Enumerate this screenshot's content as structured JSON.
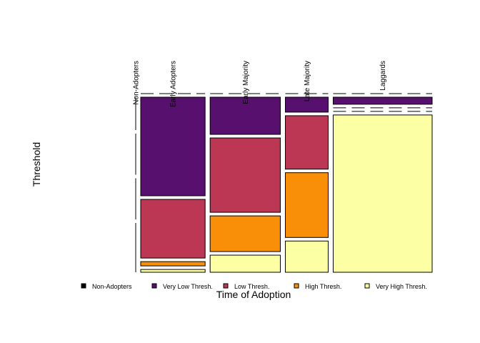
{
  "chart_data": {
    "type": "mosaic",
    "x_label": "Time of Adoption",
    "y_label": "Threshold",
    "categories": [
      "Non-Adopters",
      "Early Adopters",
      "Early Majority",
      "Late Majority",
      "Laggards"
    ],
    "widths": [
      0,
      23.3,
      25.4,
      15.5,
      35.8
    ],
    "series": [
      {
        "name": "Non-Adopters",
        "color": "#000000",
        "values": [
          0,
          0,
          0,
          0,
          0
        ]
      },
      {
        "name": "Very Low Thresh.",
        "color": "#57106e",
        "values": [
          20,
          60,
          22.6,
          9.1,
          4.3
        ]
      },
      {
        "name": "Low Thresh.",
        "color": "#bc3754",
        "values": [
          25,
          35.7,
          45.2,
          32.5,
          0
        ]
      },
      {
        "name": "High Thresh.",
        "color": "#f98e09",
        "values": [
          25,
          2.6,
          21.7,
          39.4,
          0
        ]
      },
      {
        "name": "Very High Thresh.",
        "color": "#fcffa4",
        "values": [
          30,
          1.7,
          10.4,
          19.0,
          95.7
        ]
      }
    ],
    "legend": "bottom"
  }
}
